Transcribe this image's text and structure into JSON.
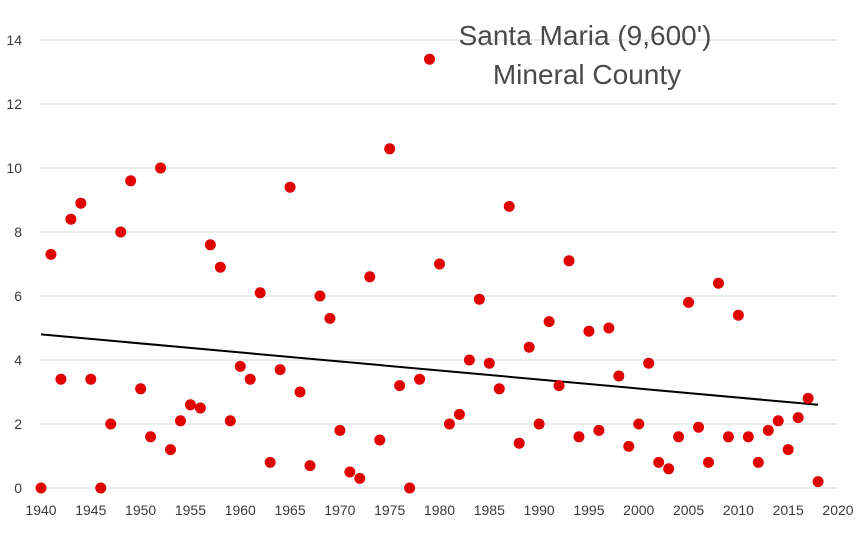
{
  "chart_data": {
    "type": "scatter",
    "title_lines": [
      "Santa Maria (9,600')",
      "Mineral County"
    ],
    "xlabel": "",
    "ylabel": "",
    "xlim": [
      1940,
      2020
    ],
    "ylim": [
      0,
      14
    ],
    "x_ticks": [
      "1940",
      "1945",
      "1950",
      "1955",
      "1960",
      "1965",
      "1970",
      "1975",
      "1980",
      "1985",
      "1990",
      "1995",
      "2000",
      "2005",
      "2010",
      "2015",
      "2020"
    ],
    "y_ticks": [
      "0",
      "2",
      "4",
      "6",
      "8",
      "10",
      "12",
      "14"
    ],
    "grid": "horizontal",
    "legend": "none",
    "series": [
      {
        "color": "#e00000",
        "marker": "circle",
        "points": [
          [
            1940,
            0.0
          ],
          [
            1941,
            7.3
          ],
          [
            1942,
            3.4
          ],
          [
            1943,
            8.4
          ],
          [
            1944,
            8.9
          ],
          [
            1945,
            3.4
          ],
          [
            1946,
            0.0
          ],
          [
            1947,
            2.0
          ],
          [
            1948,
            8.0
          ],
          [
            1949,
            9.6
          ],
          [
            1950,
            3.1
          ],
          [
            1951,
            1.6
          ],
          [
            1952,
            10.0
          ],
          [
            1953,
            1.2
          ],
          [
            1954,
            2.1
          ],
          [
            1955,
            2.6
          ],
          [
            1956,
            2.5
          ],
          [
            1957,
            7.6
          ],
          [
            1958,
            6.9
          ],
          [
            1959,
            2.1
          ],
          [
            1960,
            3.8
          ],
          [
            1961,
            3.4
          ],
          [
            1962,
            6.1
          ],
          [
            1963,
            0.8
          ],
          [
            1964,
            3.7
          ],
          [
            1965,
            9.4
          ],
          [
            1966,
            3.0
          ],
          [
            1967,
            0.7
          ],
          [
            1968,
            6.0
          ],
          [
            1969,
            5.3
          ],
          [
            1970,
            1.8
          ],
          [
            1971,
            0.5
          ],
          [
            1972,
            0.3
          ],
          [
            1973,
            6.6
          ],
          [
            1974,
            1.5
          ],
          [
            1975,
            10.6
          ],
          [
            1976,
            3.2
          ],
          [
            1977,
            0.0
          ],
          [
            1978,
            3.4
          ],
          [
            1979,
            13.4
          ],
          [
            1980,
            7.0
          ],
          [
            1981,
            2.0
          ],
          [
            1982,
            2.3
          ],
          [
            1983,
            4.0
          ],
          [
            1984,
            5.9
          ],
          [
            1985,
            3.9
          ],
          [
            1986,
            3.1
          ],
          [
            1987,
            8.8
          ],
          [
            1988,
            1.4
          ],
          [
            1989,
            4.4
          ],
          [
            1990,
            2.0
          ],
          [
            1991,
            5.2
          ],
          [
            1992,
            3.2
          ],
          [
            1993,
            7.1
          ],
          [
            1994,
            1.6
          ],
          [
            1995,
            4.9
          ],
          [
            1996,
            1.8
          ],
          [
            1997,
            5.0
          ],
          [
            1998,
            3.5
          ],
          [
            1999,
            1.3
          ],
          [
            2000,
            2.0
          ],
          [
            2001,
            3.9
          ],
          [
            2002,
            0.8
          ],
          [
            2003,
            0.6
          ],
          [
            2004,
            1.6
          ],
          [
            2005,
            5.8
          ],
          [
            2006,
            1.9
          ],
          [
            2007,
            0.8
          ],
          [
            2008,
            6.4
          ],
          [
            2009,
            1.6
          ],
          [
            2010,
            5.4
          ],
          [
            2011,
            1.6
          ],
          [
            2012,
            0.8
          ],
          [
            2013,
            1.8
          ],
          [
            2014,
            2.1
          ],
          [
            2015,
            1.2
          ],
          [
            2016,
            2.2
          ],
          [
            2017,
            2.8
          ],
          [
            2018,
            0.2
          ]
        ]
      }
    ],
    "trendline": {
      "type": "linear",
      "color": "#000000",
      "points": [
        [
          1940,
          4.8
        ],
        [
          2018,
          2.6
        ]
      ]
    }
  }
}
